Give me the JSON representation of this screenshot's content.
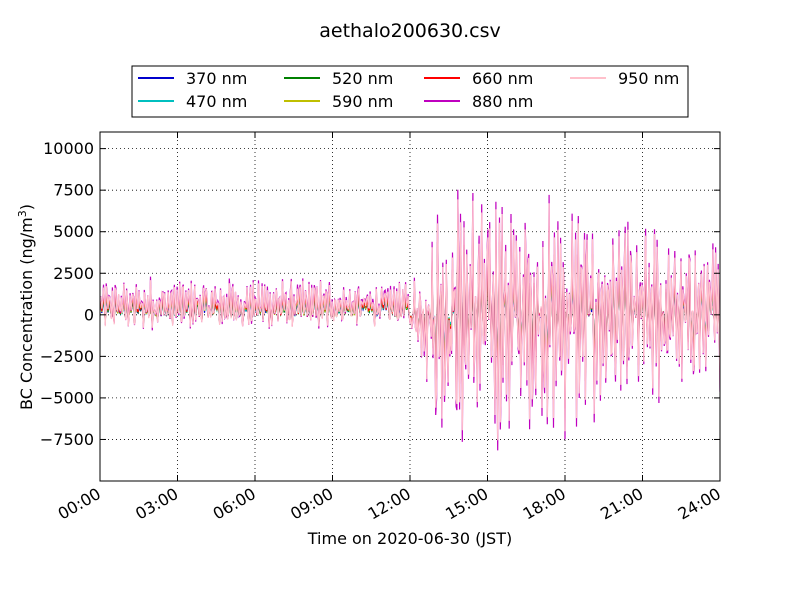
{
  "chart_data": {
    "type": "line",
    "title": "aethalo200630.csv",
    "xlabel": "Time on 2020-06-30 (JST)",
    "ylabel": "BC Concentration (ng/m",
    "ylabel_superscript": "3",
    "ylabel_suffix": ")",
    "xlim_hours": [
      0,
      24
    ],
    "ylim": [
      -10000,
      11000
    ],
    "x_tick_hours": [
      0,
      3,
      6,
      9,
      12,
      15,
      18,
      21,
      24
    ],
    "x_tick_labels": [
      "00:00",
      "03:00",
      "06:00",
      "09:00",
      "12:00",
      "15:00",
      "18:00",
      "21:00",
      "24:00"
    ],
    "y_ticks": [
      10000,
      7500,
      5000,
      2500,
      0,
      -2500,
      -5000,
      -7500
    ],
    "y_tick_labels": [
      "10000",
      "7500",
      "5000",
      "2500",
      "0",
      "−2500",
      "−5000",
      "−7500"
    ],
    "grid": true,
    "legend_position": "top, above plot, 4 columns",
    "series": [
      {
        "name": "370 nm",
        "color": "#0000cc",
        "scale": 0.55
      },
      {
        "name": "470 nm",
        "color": "#00bfbf",
        "scale": 0.6
      },
      {
        "name": "520 nm",
        "color": "#008000",
        "scale": 0.65
      },
      {
        "name": "590 nm",
        "color": "#bfbf00",
        "scale": 0.72
      },
      {
        "name": "660 nm",
        "color": "#ff0000",
        "scale": 0.8
      },
      {
        "name": "880 nm",
        "color": "#bf00bf",
        "scale": 1.08
      },
      {
        "name": "950 nm",
        "color": "#ffc0cb",
        "scale": 1.0
      }
    ]
  }
}
